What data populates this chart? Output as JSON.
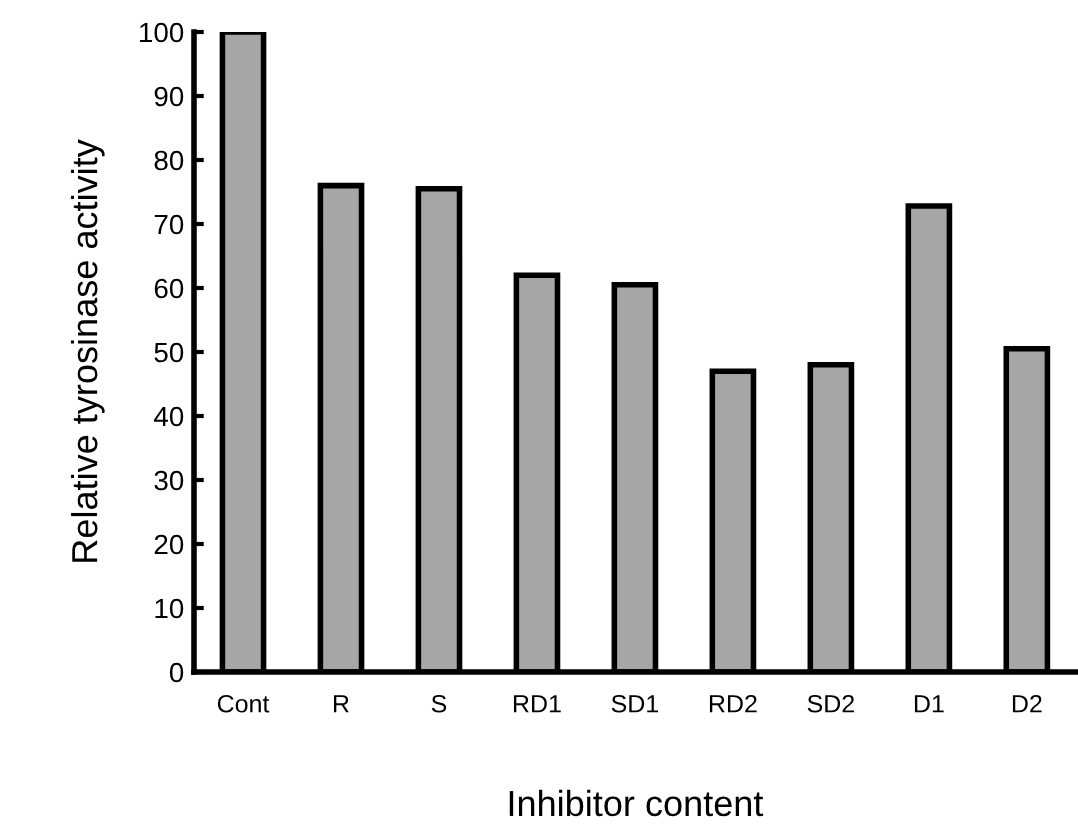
{
  "chart_data": {
    "type": "bar",
    "xlabel": "Inhibitor content",
    "ylabel": "Relative tyrosinase activity",
    "categories": [
      "Cont",
      "R",
      "S",
      "RD1",
      "SD1",
      "RD2",
      "SD2",
      "D1",
      "D2"
    ],
    "values": [
      100,
      76,
      75.5,
      62,
      60.5,
      47,
      48,
      72.8,
      50.5
    ],
    "color": "#a6a6a6",
    "ylim": [
      0,
      100
    ],
    "yticks": [
      0,
      10,
      20,
      30,
      40,
      50,
      60,
      70,
      80,
      90,
      100
    ],
    "grid": false
  }
}
